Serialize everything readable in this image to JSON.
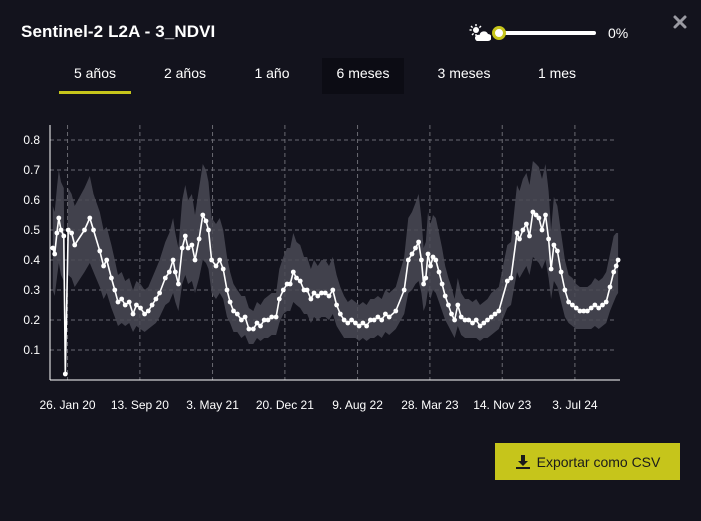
{
  "header": {
    "title": "Sentinel-2 L2A - 3_NDVI",
    "cloud_icon": "cloud-sun-icon",
    "cloud_filter_value": 0,
    "cloud_filter_label": "0%",
    "close_icon": "close-icon"
  },
  "tabs": [
    {
      "label": "5 años",
      "active": true
    },
    {
      "label": "2 años",
      "active": false
    },
    {
      "label": "1 año",
      "active": false
    },
    {
      "label": "6 meses",
      "active": false
    },
    {
      "label": "3 meses",
      "active": false
    },
    {
      "label": "1 mes",
      "active": false
    }
  ],
  "export": {
    "label": "Exportar como CSV",
    "icon": "download-icon"
  },
  "colors": {
    "accent": "#c6c51b",
    "background": "#13131d",
    "band": "#4a4a55",
    "line": "#ffffff"
  },
  "chart_data": {
    "type": "line",
    "title": "",
    "xlabel": "",
    "ylabel": "",
    "ylim": [
      0,
      0.85
    ],
    "yticks": [
      "0.1",
      "0.2",
      "0.3",
      "0.4",
      "0.5",
      "0.6",
      "0.7",
      "0.8"
    ],
    "xticks": [
      {
        "date": "2020-01-26",
        "label": "26. Jan 20"
      },
      {
        "date": "2020-09-13",
        "label": "13. Sep 20"
      },
      {
        "date": "2021-05-03",
        "label": "3. May 21"
      },
      {
        "date": "2021-12-20",
        "label": "20. Dec 21"
      },
      {
        "date": "2022-08-09",
        "label": "9. Aug 22"
      },
      {
        "date": "2023-03-28",
        "label": "28. Mar 23"
      },
      {
        "date": "2023-11-14",
        "label": "14. Nov 23"
      },
      {
        "date": "2024-07-03",
        "label": "3. Jul 24"
      }
    ],
    "xrange": [
      "2019-12-01",
      "2024-11-24"
    ],
    "grid": true,
    "legend": "none",
    "series": [
      {
        "values": [
          [
            "2019-12-10",
            0.44,
            0.3,
            0.58
          ],
          [
            "2019-12-16",
            0.42,
            0.28,
            0.56
          ],
          [
            "2019-12-23",
            0.49,
            0.34,
            0.64
          ],
          [
            "2019-12-29",
            0.54,
            0.39,
            0.7
          ],
          [
            "2020-01-05",
            0.5,
            0.35,
            0.66
          ],
          [
            "2020-01-14",
            0.48,
            0.33,
            0.64
          ],
          [
            "2020-01-19",
            0.02,
            0.02,
            0.02
          ],
          [
            "2020-01-28",
            0.5,
            0.35,
            0.64
          ],
          [
            "2020-02-08",
            0.49,
            0.34,
            0.62
          ],
          [
            "2020-02-18",
            0.45,
            0.31,
            0.58
          ],
          [
            "2020-03-20",
            0.5,
            0.36,
            0.64
          ],
          [
            "2020-04-06",
            0.54,
            0.39,
            0.68
          ],
          [
            "2020-04-18",
            0.5,
            0.36,
            0.62
          ],
          [
            "2020-05-08",
            0.43,
            0.31,
            0.56
          ],
          [
            "2020-05-20",
            0.38,
            0.27,
            0.5
          ],
          [
            "2020-05-30",
            0.4,
            0.29,
            0.51
          ],
          [
            "2020-06-14",
            0.34,
            0.24,
            0.45
          ],
          [
            "2020-06-25",
            0.3,
            0.21,
            0.4
          ],
          [
            "2020-07-05",
            0.26,
            0.18,
            0.35
          ],
          [
            "2020-07-17",
            0.27,
            0.19,
            0.36
          ],
          [
            "2020-07-28",
            0.25,
            0.18,
            0.33
          ],
          [
            "2020-08-10",
            0.26,
            0.19,
            0.34
          ],
          [
            "2020-08-22",
            0.22,
            0.16,
            0.3
          ],
          [
            "2020-09-02",
            0.25,
            0.18,
            0.33
          ],
          [
            "2020-09-15",
            0.24,
            0.17,
            0.32
          ],
          [
            "2020-09-28",
            0.22,
            0.16,
            0.3
          ],
          [
            "2020-10-10",
            0.23,
            0.17,
            0.31
          ],
          [
            "2020-10-22",
            0.25,
            0.18,
            0.34
          ],
          [
            "2020-11-03",
            0.27,
            0.19,
            0.37
          ],
          [
            "2020-11-15",
            0.29,
            0.21,
            0.4
          ],
          [
            "2020-12-03",
            0.34,
            0.25,
            0.46
          ],
          [
            "2020-12-16",
            0.36,
            0.26,
            0.49
          ],
          [
            "2020-12-28",
            0.4,
            0.29,
            0.54
          ],
          [
            "2021-01-04",
            0.36,
            0.26,
            0.49
          ],
          [
            "2021-01-14",
            0.32,
            0.23,
            0.44
          ],
          [
            "2021-01-26",
            0.44,
            0.32,
            0.6
          ],
          [
            "2021-02-05",
            0.48,
            0.35,
            0.65
          ],
          [
            "2021-02-14",
            0.44,
            0.32,
            0.6
          ],
          [
            "2021-02-26",
            0.45,
            0.33,
            0.62
          ],
          [
            "2021-03-08",
            0.4,
            0.29,
            0.55
          ],
          [
            "2021-03-21",
            0.47,
            0.34,
            0.64
          ],
          [
            "2021-04-02",
            0.55,
            0.4,
            0.72
          ],
          [
            "2021-04-12",
            0.53,
            0.39,
            0.7
          ],
          [
            "2021-04-20",
            0.5,
            0.37,
            0.66
          ],
          [
            "2021-04-30",
            0.4,
            0.29,
            0.54
          ],
          [
            "2021-05-14",
            0.38,
            0.27,
            0.52
          ],
          [
            "2021-05-26",
            0.4,
            0.29,
            0.54
          ],
          [
            "2021-06-06",
            0.37,
            0.27,
            0.5
          ],
          [
            "2021-06-18",
            0.3,
            0.21,
            0.41
          ],
          [
            "2021-06-28",
            0.26,
            0.19,
            0.36
          ],
          [
            "2021-07-09",
            0.23,
            0.16,
            0.32
          ],
          [
            "2021-07-21",
            0.22,
            0.16,
            0.3
          ],
          [
            "2021-08-03",
            0.2,
            0.14,
            0.28
          ],
          [
            "2021-08-15",
            0.21,
            0.15,
            0.28
          ],
          [
            "2021-08-27",
            0.17,
            0.12,
            0.24
          ],
          [
            "2021-09-10",
            0.17,
            0.12,
            0.23
          ],
          [
            "2021-09-22",
            0.19,
            0.14,
            0.26
          ],
          [
            "2021-10-03",
            0.18,
            0.13,
            0.25
          ],
          [
            "2021-10-15",
            0.2,
            0.14,
            0.27
          ],
          [
            "2021-10-27",
            0.2,
            0.14,
            0.28
          ],
          [
            "2021-11-08",
            0.21,
            0.15,
            0.29
          ],
          [
            "2021-11-22",
            0.21,
            0.15,
            0.29
          ],
          [
            "2021-12-02",
            0.27,
            0.19,
            0.37
          ],
          [
            "2021-12-15",
            0.3,
            0.22,
            0.41
          ],
          [
            "2021-12-27",
            0.32,
            0.23,
            0.44
          ],
          [
            "2022-01-06",
            0.32,
            0.23,
            0.44
          ],
          [
            "2022-01-16",
            0.36,
            0.26,
            0.49
          ],
          [
            "2022-01-26",
            0.34,
            0.25,
            0.46
          ],
          [
            "2022-02-07",
            0.33,
            0.24,
            0.45
          ],
          [
            "2022-02-19",
            0.3,
            0.22,
            0.41
          ],
          [
            "2022-03-01",
            0.3,
            0.22,
            0.41
          ],
          [
            "2022-03-13",
            0.27,
            0.19,
            0.37
          ],
          [
            "2022-03-23",
            0.29,
            0.21,
            0.4
          ],
          [
            "2022-04-04",
            0.28,
            0.2,
            0.38
          ],
          [
            "2022-04-16",
            0.29,
            0.21,
            0.4
          ],
          [
            "2022-04-28",
            0.29,
            0.21,
            0.4
          ],
          [
            "2022-05-10",
            0.28,
            0.2,
            0.38
          ],
          [
            "2022-05-22",
            0.3,
            0.22,
            0.41
          ],
          [
            "2022-06-03",
            0.25,
            0.18,
            0.35
          ],
          [
            "2022-06-15",
            0.22,
            0.16,
            0.31
          ],
          [
            "2022-06-27",
            0.2,
            0.14,
            0.28
          ],
          [
            "2022-07-09",
            0.19,
            0.14,
            0.26
          ],
          [
            "2022-07-21",
            0.2,
            0.14,
            0.27
          ],
          [
            "2022-08-02",
            0.19,
            0.14,
            0.26
          ],
          [
            "2022-08-14",
            0.18,
            0.13,
            0.25
          ],
          [
            "2022-08-26",
            0.19,
            0.14,
            0.26
          ],
          [
            "2022-09-07",
            0.18,
            0.13,
            0.25
          ],
          [
            "2022-09-19",
            0.2,
            0.14,
            0.27
          ],
          [
            "2022-10-01",
            0.2,
            0.14,
            0.27
          ],
          [
            "2022-10-13",
            0.21,
            0.15,
            0.28
          ],
          [
            "2022-10-25",
            0.2,
            0.14,
            0.27
          ],
          [
            "2022-11-06",
            0.22,
            0.16,
            0.3
          ],
          [
            "2022-11-18",
            0.21,
            0.15,
            0.29
          ],
          [
            "2022-12-09",
            0.23,
            0.17,
            0.31
          ],
          [
            "2023-01-05",
            0.3,
            0.22,
            0.41
          ],
          [
            "2023-01-18",
            0.4,
            0.29,
            0.54
          ],
          [
            "2023-01-30",
            0.42,
            0.3,
            0.56
          ],
          [
            "2023-02-10",
            0.44,
            0.32,
            0.59
          ],
          [
            "2023-02-20",
            0.46,
            0.33,
            0.62
          ],
          [
            "2023-03-01",
            0.4,
            0.29,
            0.54
          ],
          [
            "2023-03-08",
            0.32,
            0.23,
            0.44
          ],
          [
            "2023-03-15",
            0.34,
            0.25,
            0.46
          ],
          [
            "2023-03-22",
            0.42,
            0.3,
            0.56
          ],
          [
            "2023-03-30",
            0.38,
            0.27,
            0.52
          ],
          [
            "2023-04-07",
            0.41,
            0.3,
            0.55
          ],
          [
            "2023-04-16",
            0.4,
            0.29,
            0.54
          ],
          [
            "2023-04-26",
            0.36,
            0.26,
            0.49
          ],
          [
            "2023-05-06",
            0.32,
            0.23,
            0.44
          ],
          [
            "2023-05-16",
            0.28,
            0.2,
            0.38
          ],
          [
            "2023-05-26",
            0.25,
            0.18,
            0.34
          ],
          [
            "2023-06-05",
            0.22,
            0.16,
            0.31
          ],
          [
            "2023-06-15",
            0.2,
            0.14,
            0.27
          ],
          [
            "2023-06-25",
            0.25,
            0.18,
            0.34
          ],
          [
            "2023-07-06",
            0.21,
            0.15,
            0.29
          ],
          [
            "2023-07-18",
            0.2,
            0.14,
            0.27
          ],
          [
            "2023-07-30",
            0.2,
            0.14,
            0.27
          ],
          [
            "2023-08-11",
            0.19,
            0.14,
            0.26
          ],
          [
            "2023-08-23",
            0.2,
            0.14,
            0.27
          ],
          [
            "2023-09-04",
            0.18,
            0.13,
            0.25
          ],
          [
            "2023-09-16",
            0.19,
            0.14,
            0.26
          ],
          [
            "2023-09-28",
            0.2,
            0.14,
            0.27
          ],
          [
            "2023-10-10",
            0.21,
            0.15,
            0.29
          ],
          [
            "2023-10-22",
            0.22,
            0.16,
            0.3
          ],
          [
            "2023-11-03",
            0.23,
            0.17,
            0.31
          ],
          [
            "2023-11-30",
            0.33,
            0.24,
            0.45
          ],
          [
            "2023-12-12",
            0.34,
            0.25,
            0.46
          ],
          [
            "2023-12-31",
            0.49,
            0.36,
            0.65
          ],
          [
            "2024-01-08",
            0.47,
            0.34,
            0.63
          ],
          [
            "2024-01-19",
            0.5,
            0.36,
            0.67
          ],
          [
            "2024-01-30",
            0.52,
            0.38,
            0.69
          ],
          [
            "2024-02-09",
            0.48,
            0.35,
            0.65
          ],
          [
            "2024-02-20",
            0.56,
            0.41,
            0.73
          ],
          [
            "2024-03-01",
            0.55,
            0.4,
            0.72
          ],
          [
            "2024-03-10",
            0.54,
            0.39,
            0.71
          ],
          [
            "2024-03-20",
            0.5,
            0.37,
            0.67
          ],
          [
            "2024-03-31",
            0.55,
            0.4,
            0.72
          ],
          [
            "2024-04-10",
            0.47,
            0.34,
            0.63
          ],
          [
            "2024-04-18",
            0.37,
            0.27,
            0.5
          ],
          [
            "2024-04-27",
            0.45,
            0.33,
            0.61
          ],
          [
            "2024-05-08",
            0.43,
            0.31,
            0.58
          ],
          [
            "2024-05-20",
            0.36,
            0.26,
            0.49
          ],
          [
            "2024-06-01",
            0.3,
            0.21,
            0.4
          ],
          [
            "2024-06-13",
            0.26,
            0.19,
            0.35
          ],
          [
            "2024-06-25",
            0.25,
            0.18,
            0.34
          ],
          [
            "2024-07-07",
            0.24,
            0.17,
            0.32
          ],
          [
            "2024-07-19",
            0.23,
            0.17,
            0.31
          ],
          [
            "2024-07-31",
            0.23,
            0.17,
            0.31
          ],
          [
            "2024-08-12",
            0.23,
            0.17,
            0.31
          ],
          [
            "2024-08-24",
            0.24,
            0.17,
            0.32
          ],
          [
            "2024-09-05",
            0.25,
            0.18,
            0.34
          ],
          [
            "2024-09-17",
            0.24,
            0.17,
            0.33
          ],
          [
            "2024-09-29",
            0.25,
            0.18,
            0.34
          ],
          [
            "2024-10-11",
            0.26,
            0.19,
            0.36
          ],
          [
            "2024-10-23",
            0.31,
            0.23,
            0.42
          ],
          [
            "2024-11-04",
            0.36,
            0.26,
            0.48
          ],
          [
            "2024-11-12",
            0.38,
            0.28,
            0.49
          ],
          [
            "2024-11-18",
            0.4,
            0.29,
            0.49
          ]
        ]
      }
    ]
  }
}
